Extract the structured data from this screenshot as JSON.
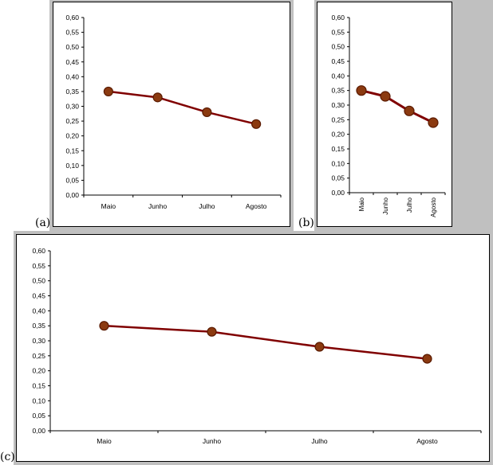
{
  "figure": {
    "panel_labels": [
      "(a)",
      "(b)",
      "(c)"
    ],
    "background": "#c0c0c0",
    "line_color": "#800000",
    "marker_fill": "#8b3a10",
    "marker_stroke": "#5a1a00"
  },
  "chart_data": [
    {
      "type": "line",
      "panel": "(a)",
      "categories": [
        "Maio",
        "Junho",
        "Julho",
        "Agosto"
      ],
      "series": [
        {
          "values": [
            0.35,
            0.33,
            0.28,
            0.24
          ]
        }
      ],
      "ylim": [
        0,
        0.6
      ],
      "yticks": [
        "0,00",
        "0,05",
        "0,10",
        "0,15",
        "0,20",
        "0,25",
        "0,30",
        "0,35",
        "0,40",
        "0,45",
        "0,50",
        "0,55",
        "0,60"
      ],
      "xtick_rotation": 0,
      "title": "",
      "xlabel": "",
      "ylabel": "",
      "grid": false,
      "legend": "none"
    },
    {
      "type": "line",
      "panel": "(b)",
      "categories": [
        "Maio",
        "Junho",
        "Julho",
        "Agosto"
      ],
      "series": [
        {
          "values": [
            0.35,
            0.33,
            0.28,
            0.24
          ]
        }
      ],
      "ylim": [
        0,
        0.6
      ],
      "yticks": [
        "0,00",
        "0,05",
        "0,10",
        "0,15",
        "0,20",
        "0,25",
        "0,30",
        "0,35",
        "0,40",
        "0,45",
        "0,50",
        "0,55",
        "0,60"
      ],
      "xtick_rotation": -90,
      "title": "",
      "xlabel": "",
      "ylabel": "",
      "grid": false,
      "legend": "none"
    },
    {
      "type": "line",
      "panel": "(c)",
      "categories": [
        "Maio",
        "Junho",
        "Julho",
        "Agosto"
      ],
      "series": [
        {
          "values": [
            0.35,
            0.33,
            0.28,
            0.24
          ]
        }
      ],
      "ylim": [
        0,
        0.6
      ],
      "yticks": [
        "0,00",
        "0,05",
        "0,10",
        "0,15",
        "0,20",
        "0,25",
        "0,30",
        "0,35",
        "0,40",
        "0,45",
        "0,50",
        "0,55",
        "0,60"
      ],
      "xtick_rotation": 0,
      "title": "",
      "xlabel": "",
      "ylabel": "",
      "grid": false,
      "legend": "none"
    }
  ]
}
